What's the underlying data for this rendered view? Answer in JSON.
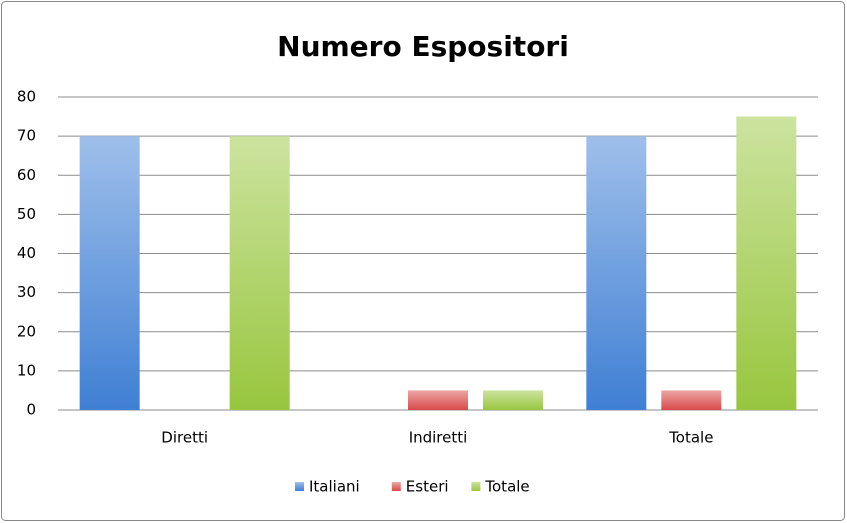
{
  "chart_data": {
    "type": "bar",
    "title": "Numero Espositori",
    "categories": [
      "Diretti",
      "Indiretti",
      "Totale"
    ],
    "series": [
      {
        "name": "Italiani",
        "color": "#3f7fd4",
        "values": [
          70,
          0,
          70
        ]
      },
      {
        "name": "Esteri",
        "color": "#d94a4a",
        "values": [
          0,
          5,
          5
        ]
      },
      {
        "name": "Totale",
        "color": "#98c63e",
        "values": [
          70,
          5,
          75
        ]
      }
    ],
    "ylim": [
      0,
      80
    ],
    "yticks": [
      0,
      10,
      20,
      30,
      40,
      50,
      60,
      70,
      80
    ],
    "grid": true
  }
}
